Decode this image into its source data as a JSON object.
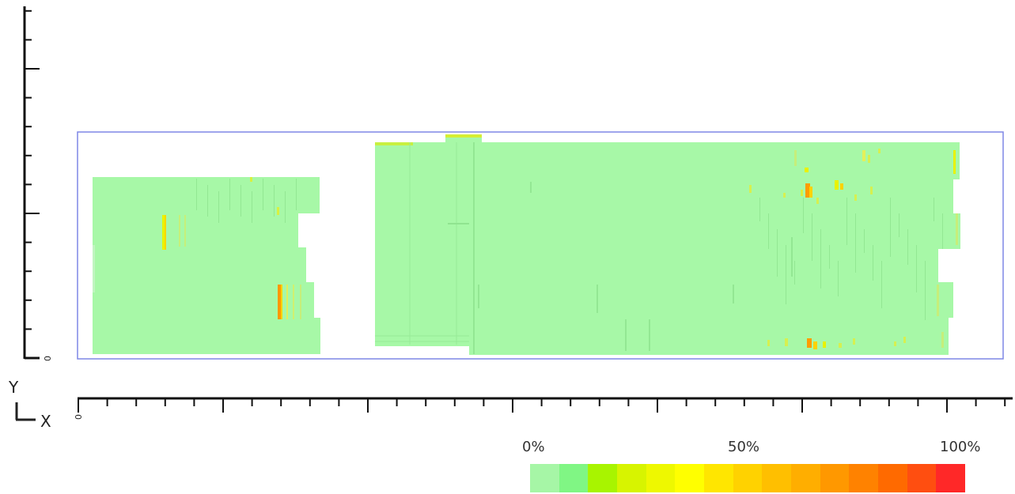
{
  "axes": {
    "y_origin_label": "0",
    "x_origin_label": "0",
    "triad_y_label": "Y",
    "triad_x_label": "X"
  },
  "legend": {
    "tick_labels": [
      "0%",
      "50%",
      "100%"
    ],
    "swatches": [
      "#a6f6a6",
      "#80f684",
      "#a8f400",
      "#d7f400",
      "#eef800",
      "#ffff00",
      "#ffe600",
      "#ffd200",
      "#ffbf00",
      "#ffae00",
      "#ff9800",
      "#ff8200",
      "#ff6a00",
      "#ff4e10",
      "#ff2828"
    ]
  },
  "colors": {
    "base_fill": "#a7f8a7",
    "bounding_box": "#7f87e6",
    "axis": "#111111"
  }
}
